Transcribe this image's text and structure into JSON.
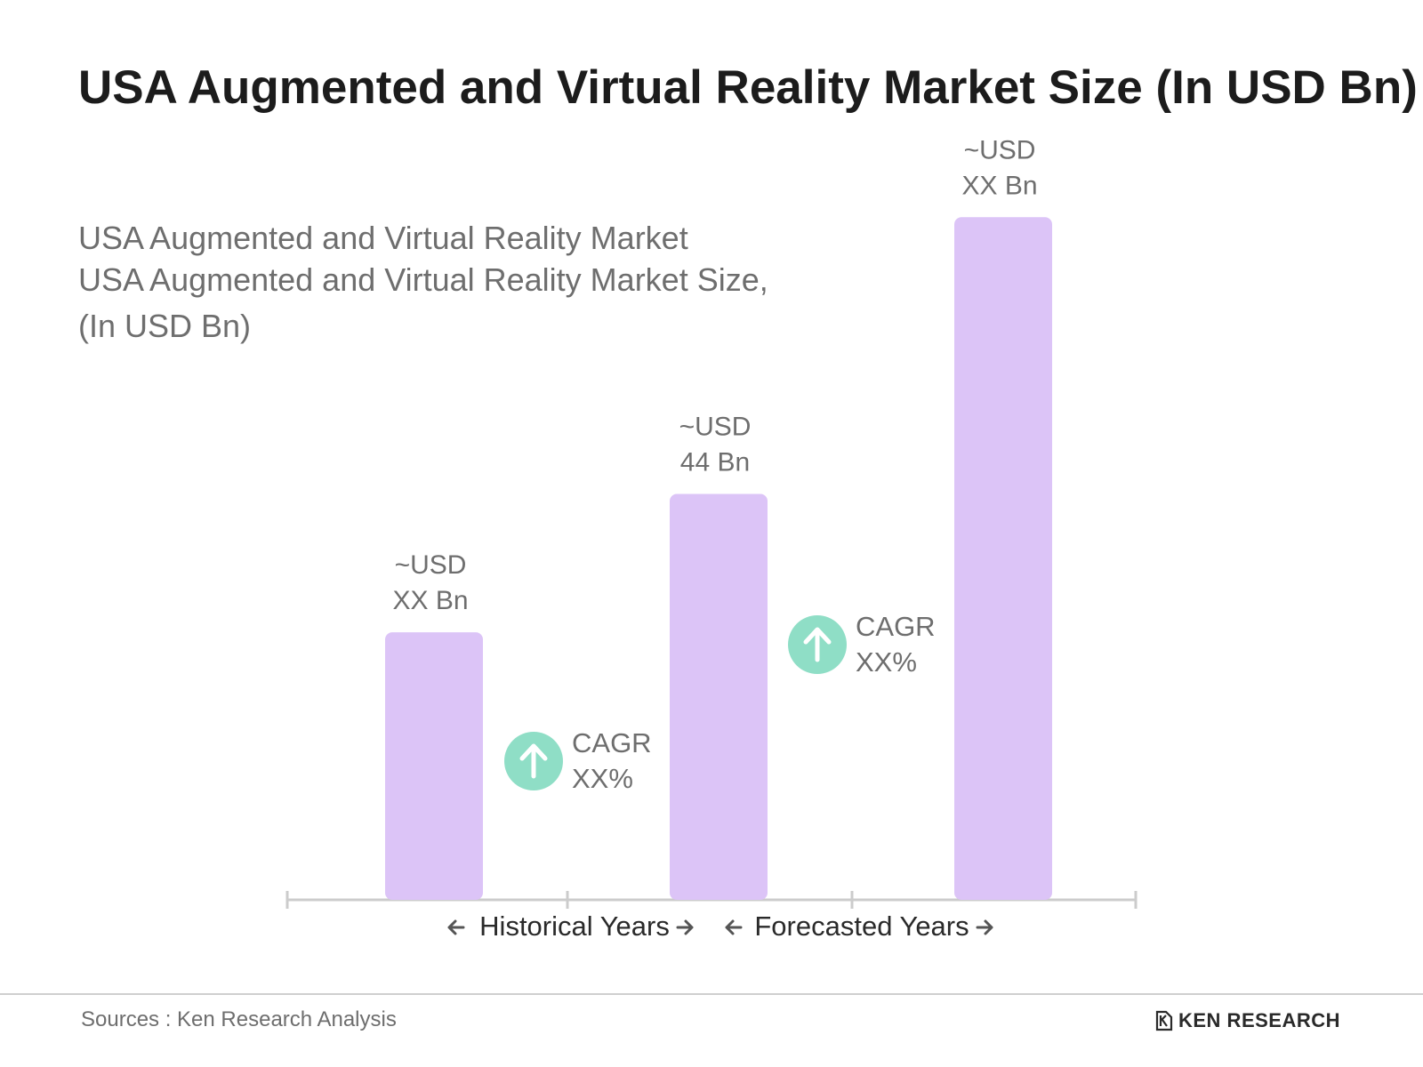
{
  "title": "USA Augmented and Virtual Reality Market Size (In USD Bn)",
  "subtitle_lines": [
    "USA Augmented and Virtual Reality Market",
    "USA Augmented and Virtual Reality Market Size,",
    "(In USD Bn)"
  ],
  "footer": {
    "sources": "Sources : Ken Research Analysis",
    "brand": "KEN RESEARCH"
  },
  "colors": {
    "bar": "#dcc4f7",
    "cagr_badge": "#8fdec6",
    "axis": "#cccccc",
    "label": "#6e6e6e",
    "period_label": "#2a2a2a"
  },
  "chart_data": {
    "type": "bar",
    "categories": [
      "",
      "",
      ""
    ],
    "values": [
      29,
      44,
      74
    ],
    "ylim": [
      0,
      80
    ],
    "grid": false,
    "legend": "none",
    "data_labels": [
      [
        "~USD",
        "XX Bn"
      ],
      [
        "~USD",
        "44 Bn"
      ],
      [
        "~USD",
        "XX Bn"
      ]
    ],
    "annotations": [
      {
        "between": [
          0,
          1
        ],
        "icon": "arrow-up-icon",
        "lines": [
          "CAGR",
          "XX%"
        ]
      },
      {
        "between": [
          1,
          2
        ],
        "icon": "arrow-up-icon",
        "lines": [
          "CAGR",
          "XX%"
        ]
      }
    ],
    "periods": [
      "Historical Years",
      "Forecasted Years"
    ]
  }
}
